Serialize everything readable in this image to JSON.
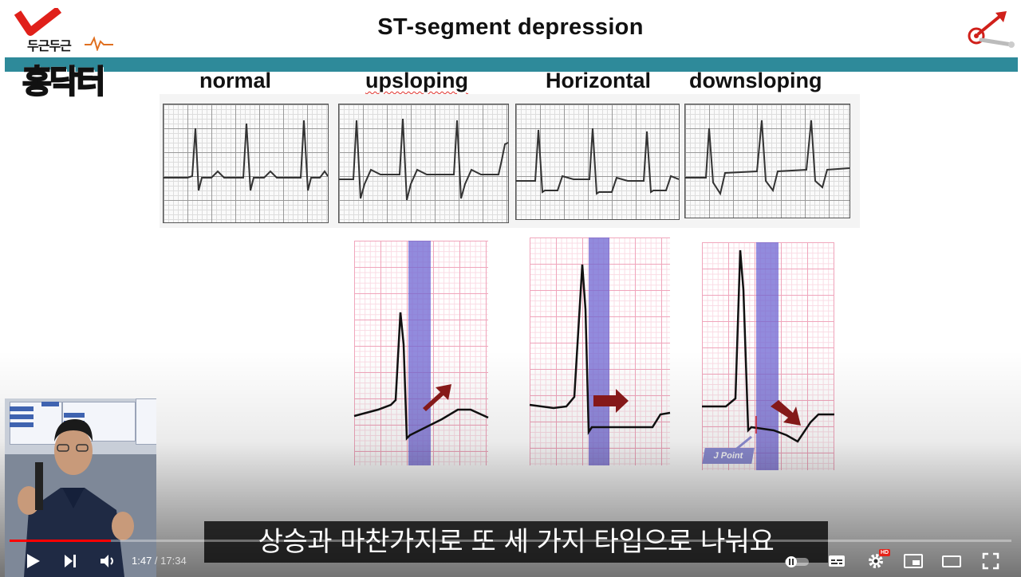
{
  "slide": {
    "title": "ST-segment depression",
    "logo": {
      "line1": "두근두근",
      "line2": "홍닥터"
    },
    "columns": [
      {
        "label": "normal"
      },
      {
        "label": "upsloping"
      },
      {
        "label": "Horizontal"
      },
      {
        "label": "downsloping"
      }
    ],
    "j_point_label": "J Point",
    "colors": {
      "accent_bar": "#2e8a9a",
      "arrow": "#8b1a1a",
      "band": "#6e64d2",
      "grid": "#f0a6bc"
    }
  },
  "subtitle": "상승과 마찬가지로 또 세 가지 타입으로 나눠요",
  "player": {
    "current_time": "1:47",
    "separator": " / ",
    "duration": "17:34",
    "progress": 0.1015,
    "hd_badge": "HD",
    "controls": {
      "play": "play-icon",
      "next": "next-icon",
      "volume": "volume-icon",
      "autoplay": "autoplay-toggle",
      "subtitles": "subtitles-icon",
      "settings": "gear-icon",
      "miniplayer": "miniplayer-icon",
      "theater": "theater-icon",
      "fullscreen": "fullscreen-icon"
    }
  }
}
